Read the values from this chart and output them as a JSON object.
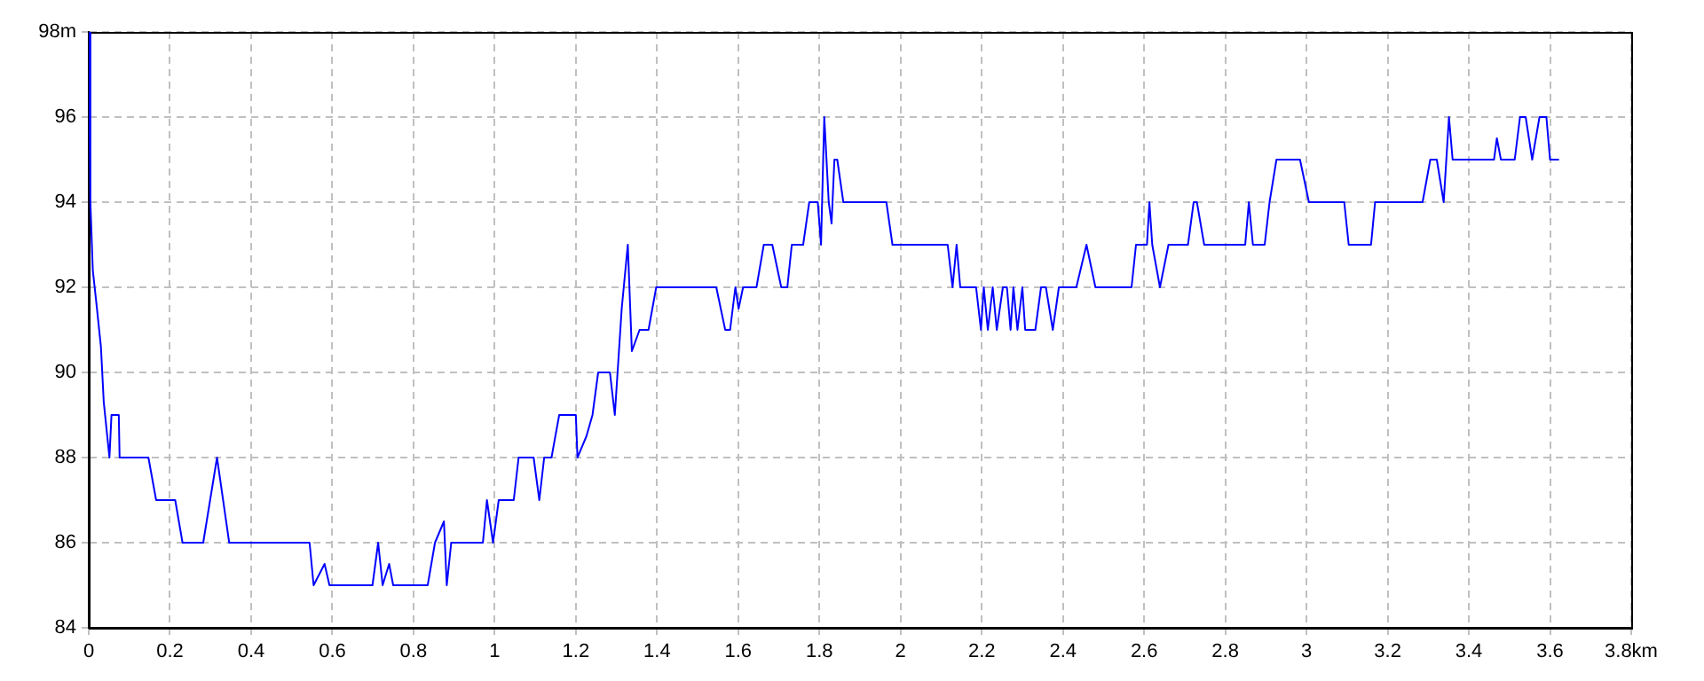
{
  "chart_data": {
    "type": "line",
    "x": [
      0,
      0.004,
      0.01,
      0.018,
      0.03,
      0.037,
      0.051,
      0.056,
      0.074,
      0.076,
      0.147,
      0.166,
      0.213,
      0.231,
      0.282,
      0.316,
      0.346,
      0.544,
      0.554,
      0.581,
      0.593,
      0.699,
      0.713,
      0.724,
      0.74,
      0.75,
      0.835,
      0.853,
      0.875,
      0.882,
      0.893,
      0.971,
      0.981,
      0.996,
      1.01,
      1.047,
      1.059,
      1.096,
      1.11,
      1.122,
      1.14,
      1.159,
      1.2,
      1.204,
      1.226,
      1.241,
      1.255,
      1.284,
      1.296,
      1.313,
      1.328,
      1.338,
      1.357,
      1.379,
      1.398,
      1.546,
      1.568,
      1.58,
      1.593,
      1.601,
      1.612,
      1.645,
      1.663,
      1.684,
      1.706,
      1.721,
      1.732,
      1.76,
      1.775,
      1.796,
      1.804,
      1.812,
      1.823,
      1.83,
      1.837,
      1.844,
      1.859,
      1.965,
      1.98,
      2.116,
      2.128,
      2.138,
      2.147,
      2.186,
      2.198,
      2.205,
      2.215,
      2.227,
      2.237,
      2.252,
      2.262,
      2.271,
      2.278,
      2.288,
      2.3,
      2.307,
      2.332,
      2.346,
      2.358,
      2.375,
      2.39,
      2.433,
      2.458,
      2.48,
      2.569,
      2.58,
      2.607,
      2.613,
      2.62,
      2.639,
      2.66,
      2.708,
      2.722,
      2.73,
      2.748,
      2.849,
      2.858,
      2.868,
      2.897,
      2.909,
      2.926,
      2.984,
      3.006,
      3.093,
      3.104,
      3.159,
      3.169,
      3.286,
      3.305,
      3.321,
      3.338,
      3.351,
      3.36,
      3.371,
      3.462,
      3.469,
      3.479,
      3.513,
      3.526,
      3.54,
      3.556,
      3.574,
      3.591,
      3.6,
      3.622
    ],
    "series": [
      {
        "color": "#0000ff",
        "values": [
          98,
          94,
          92.4,
          91.7,
          90.6,
          89.3,
          88,
          89,
          89,
          88,
          88,
          87,
          87,
          86,
          86,
          88,
          86,
          86,
          85,
          85.5,
          85,
          85,
          86,
          85,
          85.5,
          85,
          85,
          86,
          86.5,
          85,
          86,
          86,
          87,
          86,
          87,
          87,
          88,
          88,
          87,
          88,
          88,
          89,
          89,
          88,
          88.5,
          89,
          90,
          90,
          89,
          91.5,
          93,
          90.5,
          91,
          91,
          92,
          92,
          91,
          91,
          92,
          91.5,
          92,
          92,
          93,
          93,
          92,
          92,
          93,
          93,
          94,
          94,
          93,
          96,
          94,
          93.5,
          95,
          95,
          94,
          94,
          93,
          93,
          92,
          93,
          92,
          92,
          91,
          92,
          91,
          92,
          91,
          92,
          92,
          91,
          92,
          91,
          92,
          91,
          91,
          92,
          92,
          91,
          92,
          92,
          93,
          92,
          92,
          93,
          93,
          94,
          93,
          92,
          93,
          93,
          94,
          94,
          93,
          93,
          94,
          93,
          93,
          94,
          95,
          95,
          94,
          94,
          93,
          93,
          94,
          94,
          95,
          95,
          94,
          96,
          95,
          95,
          95,
          95.5,
          95,
          95,
          96,
          96,
          95,
          96,
          96,
          95,
          95
        ]
      }
    ],
    "xlim": [
      0,
      3.8
    ],
    "ylim": [
      84,
      98
    ],
    "xticks": [
      0,
      0.2,
      0.4,
      0.6,
      0.8,
      1,
      1.2,
      1.4,
      1.6,
      1.8,
      2,
      2.2,
      2.4,
      2.6,
      2.8,
      3,
      3.2,
      3.4,
      3.6,
      {
        "value": 3.8,
        "label": "3.8km"
      }
    ],
    "yticks": [
      84,
      86,
      88,
      90,
      92,
      94,
      96,
      {
        "value": 98,
        "label": "98m"
      }
    ],
    "grid": true,
    "legend": false,
    "marker": "none",
    "line_style": "solid"
  }
}
